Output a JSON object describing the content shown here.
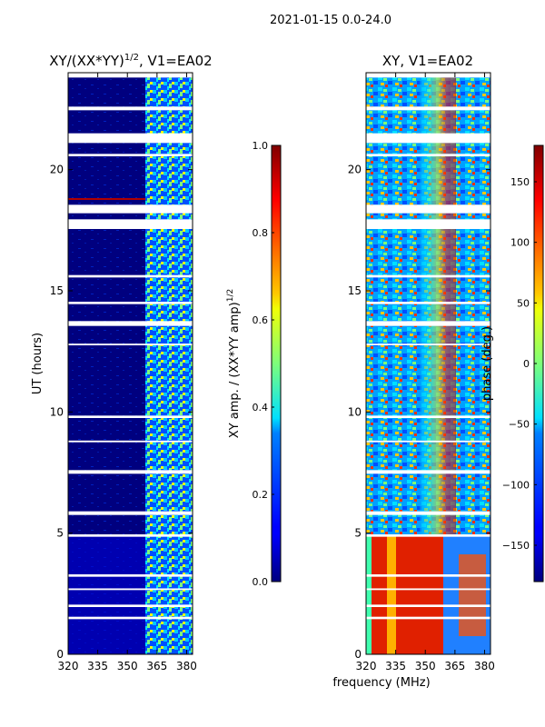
{
  "suptitle": "2021-01-15 0.0-24.0",
  "colors": {
    "band_fill": "#00007f",
    "gap": "#ffffff",
    "axis": "#000000"
  },
  "chart_data": [
    {
      "type": "heatmap",
      "id": "left",
      "title_main": "XY/(XX*YY)",
      "title_exp": "1/2",
      "title_suffix": ", V1=EA02",
      "xlabel": "",
      "ylabel": "UT (hours)",
      "xlim": [
        320,
        383
      ],
      "ylim": [
        0,
        24
      ],
      "xticks": [
        320,
        335,
        350,
        365,
        380
      ],
      "yticks": [
        0,
        5,
        10,
        15,
        20
      ],
      "colorbar": {
        "label_main": "XY amp. / (XX*YY amp)",
        "label_exp": "1/2",
        "range": [
          0.0,
          1.0
        ],
        "ticks": [
          "0.0",
          "0.2",
          "0.4",
          "0.6",
          "0.8",
          "1.0"
        ],
        "tick_values": [
          0.0,
          0.2,
          0.4,
          0.6,
          0.8,
          1.0
        ]
      },
      "data_gaps_ut_hours": [
        [
          23.8,
          24.0
        ],
        [
          22.45,
          22.6
        ],
        [
          21.1,
          21.5
        ],
        [
          20.55,
          20.65
        ],
        [
          18.2,
          18.55
        ],
        [
          17.55,
          17.95
        ],
        [
          15.55,
          15.65
        ],
        [
          14.45,
          14.55
        ],
        [
          13.55,
          13.75
        ],
        [
          12.75,
          12.82
        ],
        [
          9.75,
          9.85
        ],
        [
          8.75,
          8.82
        ],
        [
          7.45,
          7.6
        ],
        [
          5.75,
          5.9
        ],
        [
          4.85,
          4.95
        ],
        [
          3.2,
          3.3
        ],
        [
          2.65,
          2.72
        ],
        [
          1.95,
          2.05
        ],
        [
          1.45,
          1.55
        ]
      ]
    },
    {
      "type": "heatmap",
      "id": "right",
      "title_main": "XY, V1=EA02",
      "title_exp": "",
      "title_suffix": "",
      "xlabel": "frequency (MHz)",
      "ylabel": "",
      "xlim": [
        320,
        383
      ],
      "ylim": [
        0,
        24
      ],
      "xticks": [
        320,
        335,
        350,
        365,
        380
      ],
      "yticks": [
        0,
        5,
        10,
        15,
        20
      ],
      "colorbar": {
        "label_main": "phase (deg.)",
        "label_exp": "",
        "range": [
          -180,
          180
        ],
        "ticks": [
          "−150",
          "−100",
          "−50",
          "0",
          "50",
          "100",
          "150"
        ],
        "tick_values": [
          -150,
          -100,
          -50,
          0,
          50,
          100,
          150
        ]
      },
      "data_gaps_ut_hours": [
        [
          23.8,
          24.0
        ],
        [
          22.45,
          22.6
        ],
        [
          21.1,
          21.5
        ],
        [
          20.55,
          20.65
        ],
        [
          18.2,
          18.55
        ],
        [
          17.55,
          17.95
        ],
        [
          15.55,
          15.65
        ],
        [
          14.45,
          14.55
        ],
        [
          13.55,
          13.75
        ],
        [
          12.75,
          12.82
        ],
        [
          9.75,
          9.85
        ],
        [
          8.75,
          8.82
        ],
        [
          7.45,
          7.6
        ],
        [
          5.75,
          5.9
        ],
        [
          4.85,
          4.95
        ],
        [
          3.2,
          3.3
        ],
        [
          2.65,
          2.72
        ],
        [
          1.95,
          2.05
        ],
        [
          1.45,
          1.55
        ]
      ]
    }
  ]
}
